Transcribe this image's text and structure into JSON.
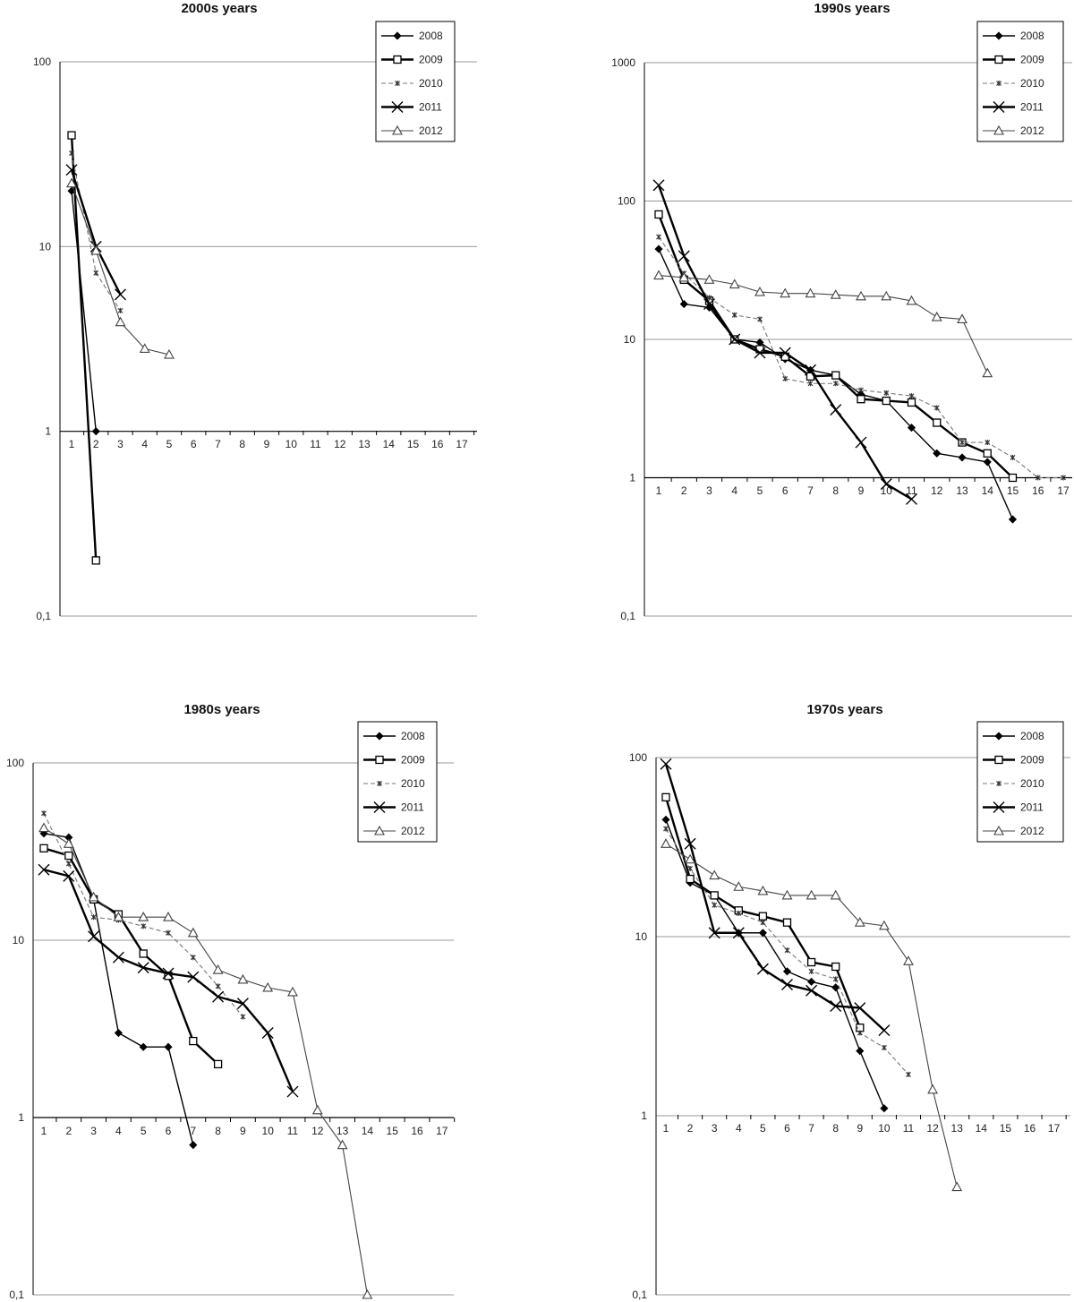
{
  "chart_data": [
    {
      "type": "line",
      "title": "2000s years",
      "y_scale": "log",
      "ylim": [
        0.1,
        100
      ],
      "y_ticks": [
        "0,1",
        "1",
        "10",
        "100"
      ],
      "x": [
        1,
        2,
        3,
        4,
        5,
        6,
        7,
        8,
        9,
        10,
        11,
        12,
        13,
        14,
        15,
        16,
        17
      ],
      "x_ticks": [
        "1",
        "2",
        "3",
        "4",
        "5",
        "6",
        "7",
        "8",
        "9",
        "10",
        "11",
        "12",
        "13",
        "14",
        "15",
        "16",
        "17"
      ],
      "grid": "horizontal",
      "legend_placement": "top-right",
      "series": [
        {
          "name": "2008",
          "x": [
            1,
            2
          ],
          "y": [
            20,
            1
          ]
        },
        {
          "name": "2009",
          "x": [
            1,
            2
          ],
          "y": [
            40,
            0.2
          ]
        },
        {
          "name": "2010",
          "x": [
            1,
            2,
            3
          ],
          "y": [
            32,
            7.2,
            4.5
          ]
        },
        {
          "name": "2011",
          "x": [
            1,
            2,
            3
          ],
          "y": [
            26,
            10,
            5.5
          ]
        },
        {
          "name": "2012",
          "x": [
            1,
            2,
            3,
            4,
            5
          ],
          "y": [
            22,
            9.5,
            3.9,
            2.8,
            2.6
          ]
        }
      ]
    },
    {
      "type": "line",
      "title": "1990s years",
      "y_scale": "log",
      "ylim": [
        0.1,
        1000
      ],
      "y_ticks": [
        "0,1",
        "1",
        "10",
        "100",
        "1000"
      ],
      "x": [
        1,
        2,
        3,
        4,
        5,
        6,
        7,
        8,
        9,
        10,
        11,
        12,
        13,
        14,
        15,
        16,
        17
      ],
      "x_ticks": [
        "1",
        "2",
        "3",
        "4",
        "5",
        "6",
        "7",
        "8",
        "9",
        "10",
        "11",
        "12",
        "13",
        "14",
        "15",
        "16",
        "17"
      ],
      "grid": "horizontal",
      "legend_placement": "top-right",
      "series": [
        {
          "name": "2008",
          "x": [
            1,
            2,
            3,
            4,
            5,
            6,
            7,
            8,
            9,
            10,
            11,
            12,
            13,
            14,
            15
          ],
          "y": [
            45,
            18,
            17,
            10,
            9.5,
            7.2,
            6,
            5.5,
            4,
            3.6,
            2.3,
            1.5,
            1.4,
            1.3,
            0.5
          ]
        },
        {
          "name": "2009",
          "x": [
            1,
            2,
            3,
            4,
            5,
            6,
            7,
            8,
            9,
            10,
            11,
            12,
            13,
            14,
            15
          ],
          "y": [
            80,
            27,
            19,
            10,
            8.5,
            7.5,
            5.4,
            5.5,
            3.7,
            3.6,
            3.5,
            2.5,
            1.8,
            1.5,
            1
          ]
        },
        {
          "name": "2010",
          "x": [
            1,
            2,
            3,
            4,
            5,
            6,
            7,
            8,
            9,
            10,
            11,
            12,
            13,
            14,
            15,
            16,
            17
          ],
          "y": [
            55,
            30,
            20,
            15,
            14,
            5.2,
            4.8,
            4.8,
            4.3,
            4.1,
            3.9,
            3.2,
            1.8,
            1.8,
            1.4,
            1,
            1
          ]
        },
        {
          "name": "2011",
          "x": [
            1,
            2,
            3,
            4,
            5,
            6,
            7,
            8,
            9,
            10,
            11
          ],
          "y": [
            130,
            40,
            18,
            10,
            8,
            8,
            6,
            3.1,
            1.8,
            0.9,
            0.7
          ]
        },
        {
          "name": "2012",
          "x": [
            1,
            2,
            3,
            4,
            5,
            6,
            7,
            8,
            9,
            10,
            11,
            12,
            13,
            14
          ],
          "y": [
            29,
            28,
            27,
            25,
            22,
            21.5,
            21.5,
            21,
            20.5,
            20.5,
            19,
            14.5,
            14,
            5.7
          ]
        }
      ]
    },
    {
      "type": "line",
      "title": "1980s years",
      "y_scale": "log",
      "ylim": [
        0.1,
        100
      ],
      "y_ticks": [
        "0,1",
        "1",
        "10",
        "100"
      ],
      "x": [
        1,
        2,
        3,
        4,
        5,
        6,
        7,
        8,
        9,
        10,
        11,
        12,
        13,
        14,
        15,
        16,
        17
      ],
      "x_ticks": [
        "1",
        "2",
        "3",
        "4",
        "5",
        "6",
        "7",
        "8",
        "9",
        "10",
        "11",
        "12",
        "13",
        "14",
        "15",
        "16",
        "17"
      ],
      "grid": "horizontal",
      "legend_placement": "top-right",
      "series": [
        {
          "name": "2008",
          "x": [
            1,
            2,
            3,
            4,
            5,
            6,
            7
          ],
          "y": [
            40,
            38,
            17,
            3,
            2.5,
            2.5,
            0.7
          ]
        },
        {
          "name": "2009",
          "x": [
            1,
            2,
            3,
            4,
            5,
            6,
            7,
            8
          ],
          "y": [
            33,
            30,
            17,
            14,
            8.4,
            6.3,
            2.7,
            2
          ]
        },
        {
          "name": "2010",
          "x": [
            1,
            2,
            3,
            4,
            5,
            6,
            7,
            8,
            9
          ],
          "y": [
            52,
            27,
            13.5,
            13,
            12,
            11,
            8,
            5.5,
            3.7
          ]
        },
        {
          "name": "2011",
          "x": [
            1,
            2,
            3,
            4,
            5,
            6,
            7,
            8,
            9,
            10,
            11
          ],
          "y": [
            25,
            23,
            10.5,
            8,
            7,
            6.5,
            6.2,
            4.8,
            4.4,
            3,
            1.4
          ]
        },
        {
          "name": "2012",
          "x": [
            1,
            2,
            3,
            4,
            5,
            6,
            7,
            8,
            9,
            10,
            11,
            12,
            13,
            14
          ],
          "y": [
            43,
            35,
            17.5,
            13.5,
            13.5,
            13.5,
            11,
            6.8,
            6,
            5.4,
            5.1,
            1.1,
            0.7,
            0.1
          ]
        }
      ]
    },
    {
      "type": "line",
      "title": "1970s years",
      "y_scale": "log",
      "ylim": [
        0.1,
        100
      ],
      "y_ticks": [
        "0,1",
        "1",
        "10",
        "100"
      ],
      "x": [
        1,
        2,
        3,
        4,
        5,
        6,
        7,
        8,
        9,
        10,
        11,
        12,
        13,
        14,
        15,
        16,
        17
      ],
      "x_ticks": [
        "1",
        "2",
        "3",
        "4",
        "5",
        "6",
        "7",
        "8",
        "9",
        "10",
        "11",
        "12",
        "13",
        "14",
        "15",
        "16",
        "17"
      ],
      "grid": "horizontal",
      "legend_placement": "top-right",
      "series": [
        {
          "name": "2008",
          "x": [
            1,
            2,
            3,
            4,
            5,
            6,
            7,
            8,
            9,
            10
          ],
          "y": [
            45,
            20,
            17,
            10.5,
            10.5,
            6.4,
            5.6,
            5.2,
            2.3,
            1.1
          ]
        },
        {
          "name": "2009",
          "x": [
            1,
            2,
            3,
            4,
            5,
            6,
            7,
            8,
            9
          ],
          "y": [
            60,
            21,
            17,
            14,
            13,
            12,
            7.2,
            6.8,
            3.1
          ]
        },
        {
          "name": "2010",
          "x": [
            1,
            2,
            3,
            4,
            5,
            6,
            7,
            8,
            9,
            10,
            11
          ],
          "y": [
            40,
            24,
            15,
            13.5,
            12,
            8.4,
            6.4,
            5.8,
            2.9,
            2.4,
            1.7
          ]
        },
        {
          "name": "2011",
          "x": [
            1,
            2,
            3,
            4,
            5,
            6,
            7,
            8,
            9,
            10
          ],
          "y": [
            92,
            33,
            10.5,
            10.5,
            6.6,
            5.4,
            5,
            4.1,
            4,
            3
          ]
        },
        {
          "name": "2012",
          "x": [
            1,
            2,
            3,
            4,
            5,
            6,
            7,
            8,
            9,
            10,
            11,
            12,
            13
          ],
          "y": [
            33,
            27,
            22,
            19,
            18,
            17,
            17,
            17,
            12,
            11.5,
            7.3,
            1.4,
            0.4
          ]
        }
      ]
    }
  ]
}
